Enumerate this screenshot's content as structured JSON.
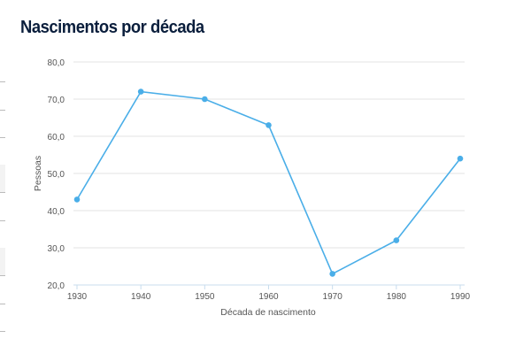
{
  "chart_data": {
    "type": "line",
    "title": "Nascimentos por década",
    "xlabel": "Década de nascimento",
    "ylabel": "Pessoas",
    "categories": [
      "1930",
      "1940",
      "1950",
      "1960",
      "1970",
      "1980",
      "1990"
    ],
    "values": [
      43,
      72,
      70,
      63,
      23,
      32,
      54
    ],
    "ylim": [
      20,
      80
    ],
    "yticks": [
      "20,0",
      "30,0",
      "40,0",
      "50,0",
      "60,0",
      "70,0",
      "80,0"
    ],
    "grid": true,
    "legend": "none",
    "color": "#4aaee8"
  }
}
